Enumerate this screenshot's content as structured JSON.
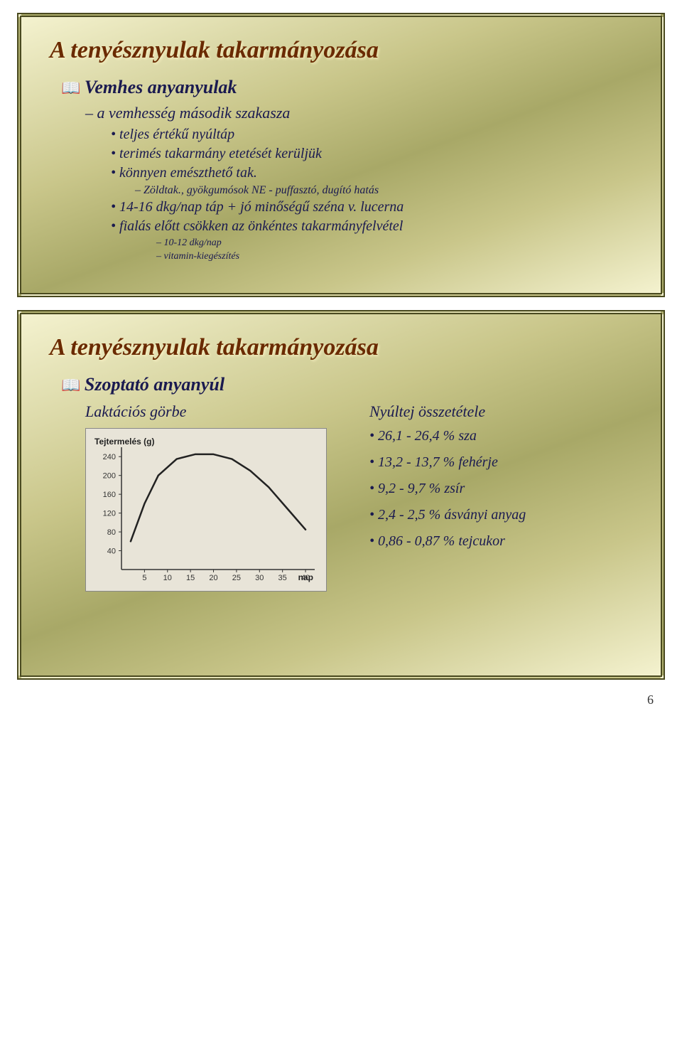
{
  "slide1": {
    "title": "A tenyésznyulak takarmányozása",
    "heading": "Vemhes anyanyulak",
    "sub": "a vemhesség második szakasza",
    "bullets": [
      "teljes értékű nyúltáp",
      "terimés takarmány etetését kerüljük",
      "könnyen emészthető tak."
    ],
    "note": "Zöldtak., gyökgumósok NE - puffasztó, dugító hatás",
    "bullets2": [
      "14-16 dkg/nap táp + jó minőségű széna v. lucerna",
      "fialás előtt csökken az önkéntes takarmányfelvétel"
    ],
    "tinies": [
      "10-12 dkg/nap",
      "vitamin-kiegészítés"
    ]
  },
  "slide2": {
    "title": "A tenyésznyulak takarmányozása",
    "heading": "Szoptató anyanyúl",
    "left_title": "Laktációs görbe",
    "right_title": "Nyúltej összetétele",
    "milk": [
      "26,1 - 26,4 % sza",
      "13,2 - 13,7 % fehérje",
      "9,2 - 9,7 % zsír",
      "2,4 - 2,5 % ásványi anyag",
      "0,86 - 0,87 % tejcukor"
    ],
    "chart": {
      "type": "line",
      "y_title": "Tejtermelés (g)",
      "x_title": "nap",
      "x_ticks": [
        5,
        10,
        15,
        20,
        25,
        30,
        35,
        40
      ],
      "y_ticks": [
        40,
        80,
        120,
        160,
        200,
        240
      ],
      "xlim": [
        0,
        42
      ],
      "ylim": [
        0,
        260
      ],
      "points": [
        {
          "x": 2,
          "y": 60
        },
        {
          "x": 5,
          "y": 140
        },
        {
          "x": 8,
          "y": 200
        },
        {
          "x": 12,
          "y": 235
        },
        {
          "x": 16,
          "y": 245
        },
        {
          "x": 20,
          "y": 245
        },
        {
          "x": 24,
          "y": 235
        },
        {
          "x": 28,
          "y": 210
        },
        {
          "x": 32,
          "y": 175
        },
        {
          "x": 36,
          "y": 130
        },
        {
          "x": 40,
          "y": 85
        }
      ],
      "line_color": "#222222",
      "line_width": 2.5,
      "background_color": "#e8e4d8",
      "axis_color": "#333333"
    }
  },
  "page_number": "6"
}
